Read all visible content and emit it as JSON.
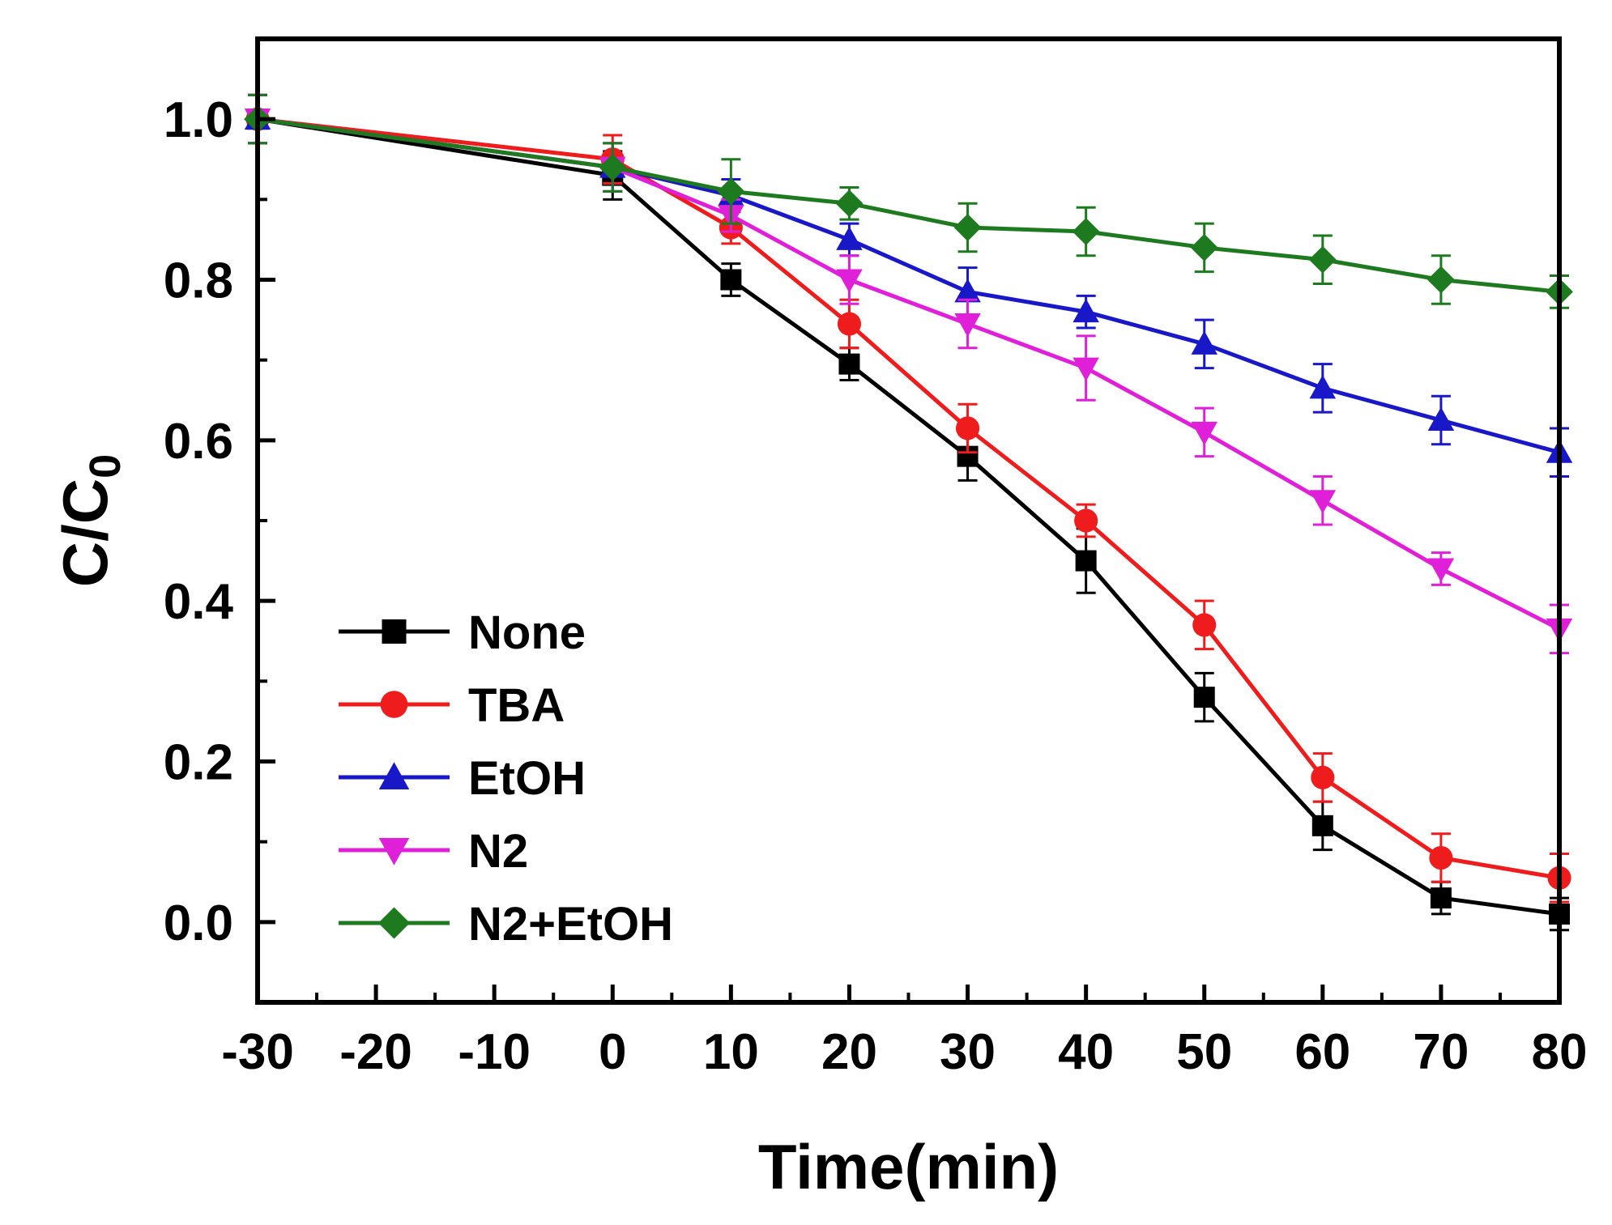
{
  "chart_data": {
    "type": "line",
    "xlabel": "Time(min)",
    "ylabel": {
      "main": "C/C",
      "sub": "0"
    },
    "xlim": [
      -30,
      80
    ],
    "ylim": [
      -0.1,
      1.1
    ],
    "xticks": [
      -30,
      -20,
      -10,
      0,
      10,
      20,
      30,
      40,
      50,
      60,
      70,
      80
    ],
    "xtick_labels": [
      "-30",
      "-20",
      "-10",
      "0",
      "10",
      "20",
      "30",
      "40",
      "50",
      "60",
      "70",
      "80"
    ],
    "yticks": [
      0.0,
      0.2,
      0.4,
      0.6,
      0.8,
      1.0
    ],
    "ytick_labels": [
      "0.0",
      "0.2",
      "0.4",
      "0.6",
      "0.8",
      "1.0"
    ],
    "grid": false,
    "legend_position": "bottom-left",
    "x": [
      -30,
      0,
      10,
      20,
      30,
      40,
      50,
      60,
      70,
      80
    ],
    "series": [
      {
        "name": "None",
        "color": "#000000",
        "marker": "square",
        "values": [
          1.0,
          0.93,
          0.8,
          0.695,
          0.58,
          0.45,
          0.28,
          0.12,
          0.03,
          0.01
        ],
        "errors": [
          0.03,
          0.03,
          0.02,
          0.02,
          0.03,
          0.04,
          0.03,
          0.03,
          0.02,
          0.02
        ]
      },
      {
        "name": "TBA",
        "color": "#ee1c1c",
        "marker": "circle",
        "values": [
          1.0,
          0.95,
          0.865,
          0.745,
          0.615,
          0.5,
          0.37,
          0.18,
          0.08,
          0.055
        ],
        "errors": [
          0.03,
          0.03,
          0.02,
          0.03,
          0.03,
          0.02,
          0.03,
          0.03,
          0.03,
          0.03
        ]
      },
      {
        "name": "EtOH",
        "color": "#1818c8",
        "marker": "triangle-up",
        "values": [
          1.0,
          0.94,
          0.905,
          0.85,
          0.785,
          0.76,
          0.72,
          0.665,
          0.625,
          0.585
        ],
        "errors": [
          0.03,
          0.03,
          0.02,
          0.02,
          0.03,
          0.02,
          0.03,
          0.03,
          0.03,
          0.03
        ]
      },
      {
        "name": "N2",
        "color": "#e020d8",
        "marker": "triangle-down",
        "values": [
          1.0,
          0.94,
          0.88,
          0.8,
          0.745,
          0.69,
          0.61,
          0.525,
          0.44,
          0.365
        ],
        "errors": [
          0.03,
          0.03,
          0.02,
          0.03,
          0.03,
          0.04,
          0.03,
          0.03,
          0.02,
          0.03
        ]
      },
      {
        "name": "N2+EtOH",
        "color": "#1e7a1e",
        "marker": "diamond",
        "values": [
          1.0,
          0.94,
          0.91,
          0.895,
          0.865,
          0.86,
          0.84,
          0.825,
          0.8,
          0.785
        ],
        "errors": [
          0.03,
          0.03,
          0.04,
          0.02,
          0.03,
          0.03,
          0.03,
          0.03,
          0.03,
          0.02
        ]
      }
    ]
  }
}
